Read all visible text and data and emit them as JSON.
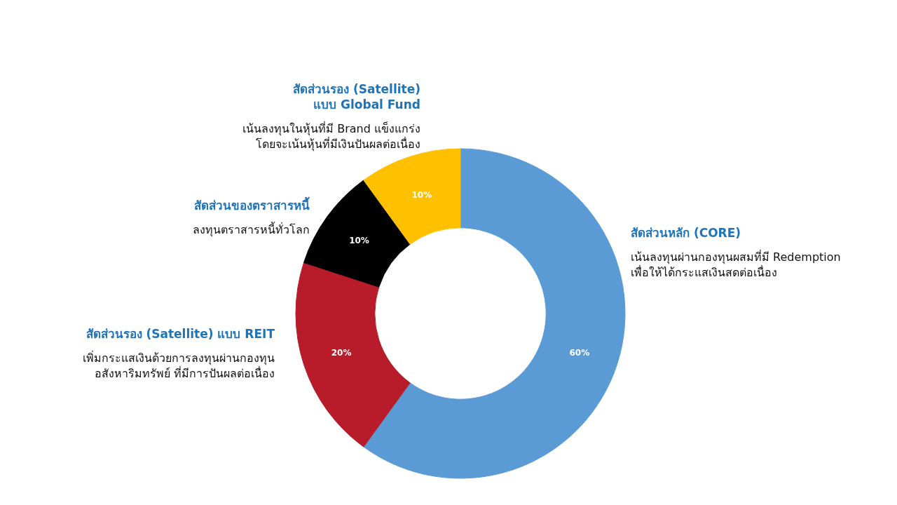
{
  "chart_data": {
    "type": "donut",
    "categories": [
      "สัดส่วนหลัก (CORE)",
      "สัดส่วนรอง (Satellite) แบบ REIT",
      "สัดส่วนของตราสารหนี้",
      "สัดส่วนรอง (Satellite)\nแบบ Global Fund"
    ],
    "values": [
      60,
      20,
      10,
      10
    ],
    "colors": [
      "#5b9bd5",
      "#b81c2a",
      "#000000",
      "#ffc000"
    ],
    "value_labels": [
      "60%",
      "20%",
      "10%",
      "10%"
    ],
    "annotations": [
      "เน้นลงทุนผ่านกองทุนผสมที่มี Redemption\nเพื่อให้ได้กระแสเงินสดต่อเนื่อง",
      "เพิ่มกระแสเงินด้วยการลงทุนผ่านกองทุน\nอสังหาริมทรัพย์ ที่มีการปันผลต่อเนื่อง",
      "ลงทุนตราสารหนี้ทั่วโลก",
      "เน้นลงทุนในหุ้นที่มี Brand แข็งแกร่ง\nโดยจะเน้นหุ้นที่มีเงินปันผลต่อเนื่อง"
    ]
  }
}
